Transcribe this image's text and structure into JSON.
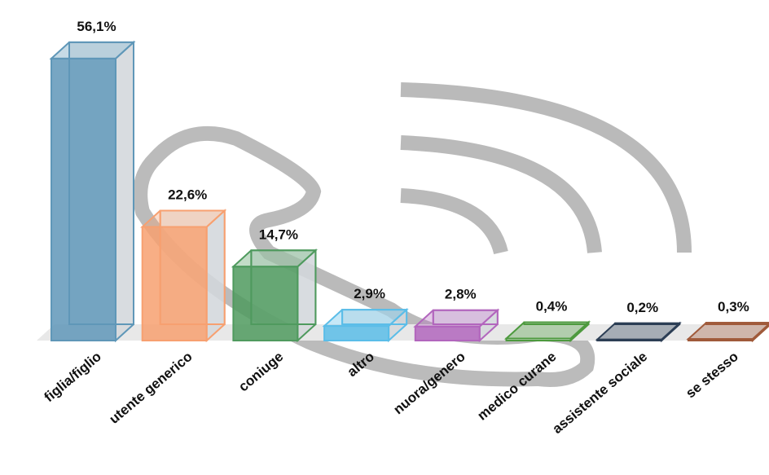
{
  "chart_data": {
    "type": "bar3d",
    "categories": [
      "figlia/figlio",
      "utente generico",
      "coniuge",
      "altro",
      "nuora/genero",
      "medico curane",
      "assistente sociale",
      "se stesso"
    ],
    "values": [
      56.1,
      22.6,
      14.7,
      2.9,
      2.8,
      0.4,
      0.2,
      0.3
    ],
    "value_labels": [
      "56,1%",
      "22,6%",
      "14,7%",
      "2,9%",
      "2,8%",
      "0,4%",
      "0,2%",
      "0,3%"
    ],
    "colors": [
      "#5f97b8",
      "#f7a070",
      "#4f9a5e",
      "#5bbde8",
      "#b266bd",
      "#4d9a3e",
      "#2c3e55",
      "#a05a3a"
    ]
  }
}
